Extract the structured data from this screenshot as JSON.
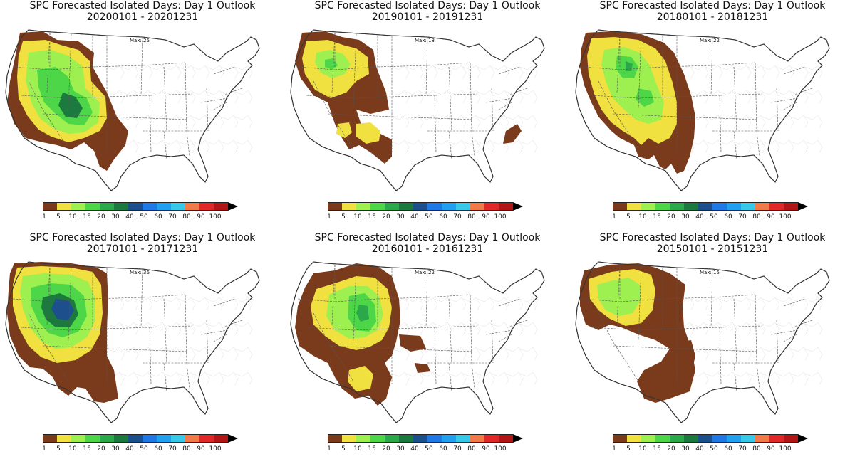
{
  "colorbar": {
    "ticks": [
      "1",
      "5",
      "10",
      "15",
      "20",
      "30",
      "40",
      "50",
      "60",
      "70",
      "80",
      "90",
      "100"
    ],
    "colors": [
      "#7a3b1d",
      "#f0e040",
      "#9ef050",
      "#4cd648",
      "#2aa84a",
      "#1d7a3e",
      "#1c4f8c",
      "#1f78e6",
      "#22a0f0",
      "#38c8e8",
      "#f07a48",
      "#e02828",
      "#b21616",
      "#6e0a0a"
    ]
  },
  "panels": [
    {
      "title_line1": "SPC Forecasted Isolated Days: Day 1 Outlook",
      "title_line2": "20200101 - 20201231",
      "max_label": "Max: 25"
    },
    {
      "title_line1": "SPC Forecasted Isolated Days: Day 1 Outlook",
      "title_line2": "20190101 - 20191231",
      "max_label": "Max: 18"
    },
    {
      "title_line1": "SPC Forecasted Isolated Days: Day 1 Outlook",
      "title_line2": "20180101 - 20181231",
      "max_label": "Max: 22"
    },
    {
      "title_line1": "SPC Forecasted Isolated Days: Day 1 Outlook",
      "title_line2": "20170101 - 20171231",
      "max_label": "Max: 36"
    },
    {
      "title_line1": "SPC Forecasted Isolated Days: Day 1 Outlook",
      "title_line2": "20160101 - 20161231",
      "max_label": "Max: 22"
    },
    {
      "title_line1": "SPC Forecasted Isolated Days: Day 1 Outlook",
      "title_line2": "20150101 - 20151231",
      "max_label": "Max: 15"
    }
  ]
}
